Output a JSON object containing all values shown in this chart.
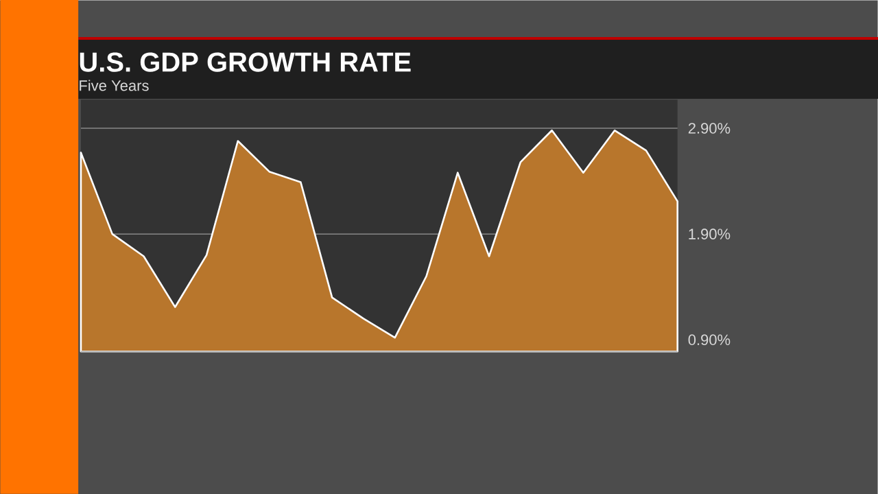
{
  "chart_data": {
    "type": "area",
    "title": "U.S. GDP GROWTH RATE",
    "subtitle": "Five Years",
    "categories": [
      null,
      null,
      null,
      null,
      null,
      null,
      null,
      null,
      null,
      null,
      null,
      null,
      null,
      null,
      null,
      null,
      null,
      null,
      null,
      null
    ],
    "values": [
      2.67,
      1.9,
      1.69,
      1.21,
      1.7,
      2.78,
      2.49,
      2.39,
      1.3,
      1.1,
      0.92,
      1.5,
      2.48,
      1.69,
      2.58,
      2.88,
      2.48,
      2.88,
      2.69,
      2.21
    ],
    "color": "#b8762c",
    "ylim": [
      0.79,
      3.17
    ],
    "yticks": [
      {
        "value": 0.9,
        "label": "0.90%"
      },
      {
        "value": 1.9,
        "label": "1.90%"
      },
      {
        "value": 2.9,
        "label": "2.90%"
      }
    ],
    "grid": "y"
  }
}
